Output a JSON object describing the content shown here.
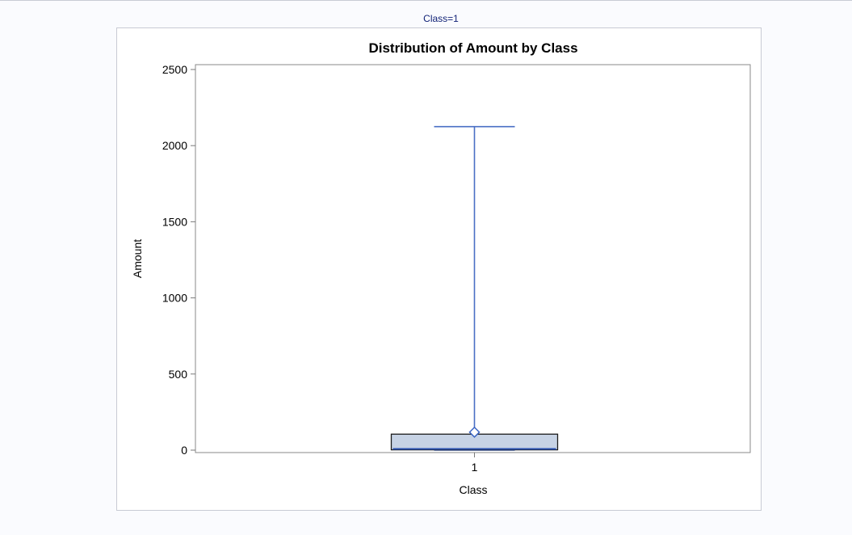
{
  "page": {
    "by_group_label": "Class=1"
  },
  "chart_data": {
    "type": "box",
    "title": "Distribution of Amount by Class",
    "xlabel": "Class",
    "ylabel": "Amount",
    "ylim": [
      0,
      2500
    ],
    "yticks": [
      0,
      500,
      1000,
      1500,
      2000,
      2500
    ],
    "categories": [
      "1"
    ],
    "boxes": [
      {
        "category": "1",
        "min": 0,
        "q1": 2,
        "median": 8,
        "q3": 105,
        "max": 2125,
        "mean": 118
      }
    ],
    "colors": {
      "box_fill": "#c7d3e5",
      "box_edge": "#1b1b1b",
      "whisker": "#4a6fc4",
      "median": "#2a52b0",
      "mean_marker": "#3a64c4",
      "axis": "#7a7a7a",
      "text": "#000000"
    }
  }
}
